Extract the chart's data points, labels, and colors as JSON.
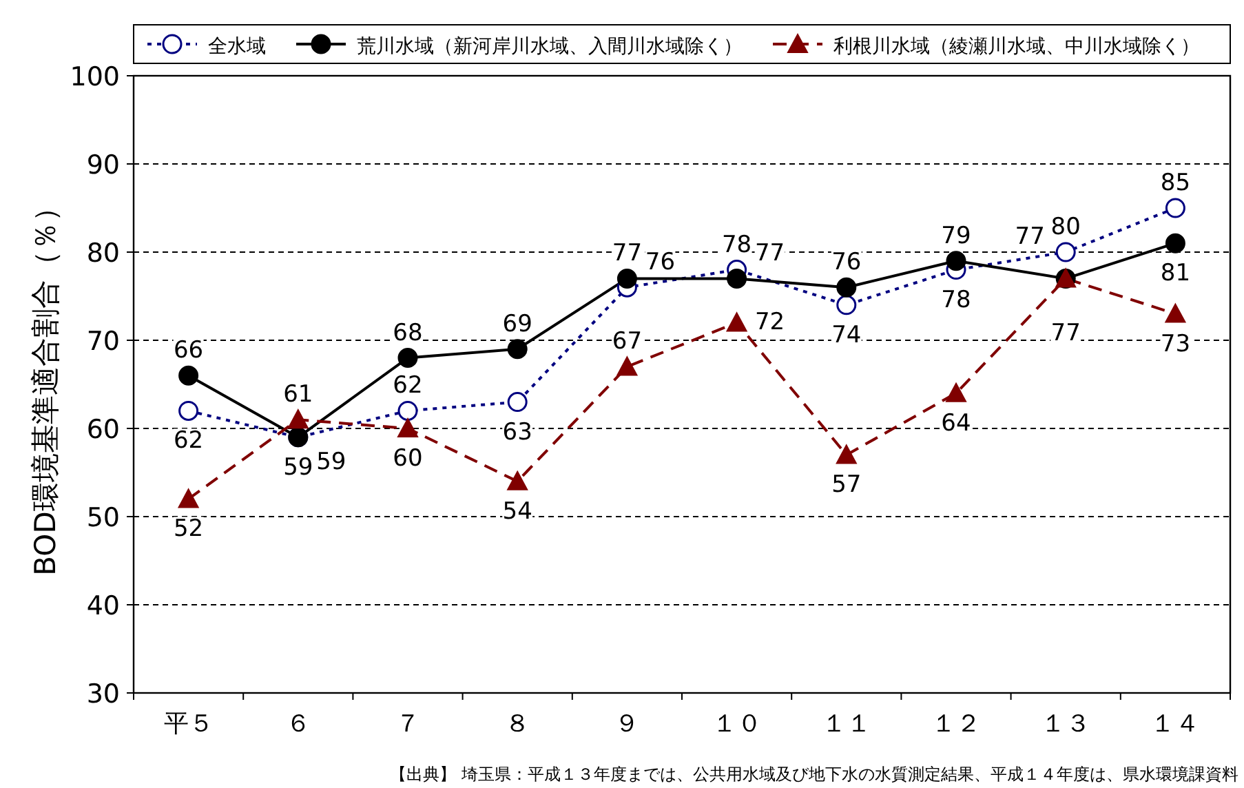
{
  "chart_data": {
    "type": "line",
    "ylabel": "BOD環境基準適合割合（％）",
    "categories": [
      "平５",
      "６",
      "７",
      "８",
      "９",
      "１０",
      "１１",
      "１２",
      "１３",
      "１４"
    ],
    "series": [
      {
        "name": "全水域",
        "color": "#000080",
        "values": [
          62,
          59,
          62,
          63,
          76,
          78,
          74,
          78,
          80,
          85
        ],
        "marker": "circle",
        "line_style": "dotted"
      },
      {
        "name": "荒川水域（新河岸川水域、入間川水域除く）",
        "color": "#000000",
        "values": [
          66,
          59,
          68,
          69,
          77,
          77,
          76,
          79,
          77,
          81
        ],
        "marker": "circle",
        "line_style": "solid"
      },
      {
        "name": "利根川水域（綾瀬川水域、中川水域除く）",
        "color": "#800000",
        "values": [
          52,
          61,
          60,
          54,
          67,
          72,
          57,
          64,
          77,
          73
        ],
        "marker": "triangle",
        "line_style": "dashed"
      }
    ],
    "ylim": [
      30,
      100
    ],
    "yticks": [
      30,
      40,
      50,
      60,
      70,
      80,
      90,
      100
    ],
    "grid": "y",
    "legend": "top",
    "data_labels": true,
    "annotations": [
      "【出典】 埼玉県：平成１３年度までは、公共用水域及び地下水の水質測定結果、平成１４年度は、県水環境課資料"
    ]
  }
}
